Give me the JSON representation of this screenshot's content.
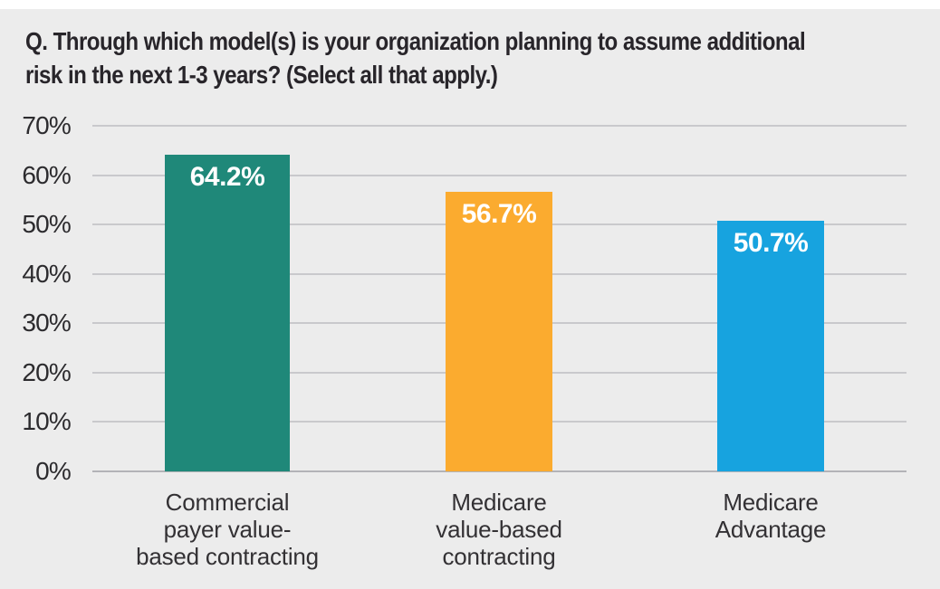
{
  "page": {
    "background_color": "#ececec",
    "top_strip_color": "#ffffff"
  },
  "title": {
    "text": "Q. Through which model(s) is your organization planning to assume additional\nrisk in the next 1-3 years? (Select all that apply.)"
  },
  "chart_data": {
    "type": "bar",
    "title": "Q. Through which model(s) is your organization planning to assume additional risk in the next 1-3 years? (Select all that apply.)",
    "categories": [
      "Commercial payer value-based contracting",
      "Medicare value-based contracting",
      "Medicare Advantage"
    ],
    "category_label_lines": [
      "Commercial\npayer value-\nbased contracting",
      "Medicare\nvalue-based\ncontracting",
      "Medicare\nAdvantage"
    ],
    "values": [
      64.2,
      56.7,
      50.7
    ],
    "value_labels": [
      "64.2%",
      "56.7%",
      "50.7%"
    ],
    "bar_colors": [
      "#1f8879",
      "#fbab2f",
      "#17a3df"
    ],
    "value_label_color": "#ffffff",
    "xlabel": "",
    "ylabel": "",
    "ylim": [
      0,
      70
    ],
    "yticks": [
      0,
      10,
      20,
      30,
      40,
      50,
      60,
      70
    ],
    "ytick_labels": [
      "0%",
      "10%",
      "20%",
      "30%",
      "40%",
      "50%",
      "60%",
      "70%"
    ],
    "grid": "horizontal",
    "gridline_color": "#c9c9cc",
    "baseline_color": "#b3b3b7",
    "legend": "none"
  }
}
